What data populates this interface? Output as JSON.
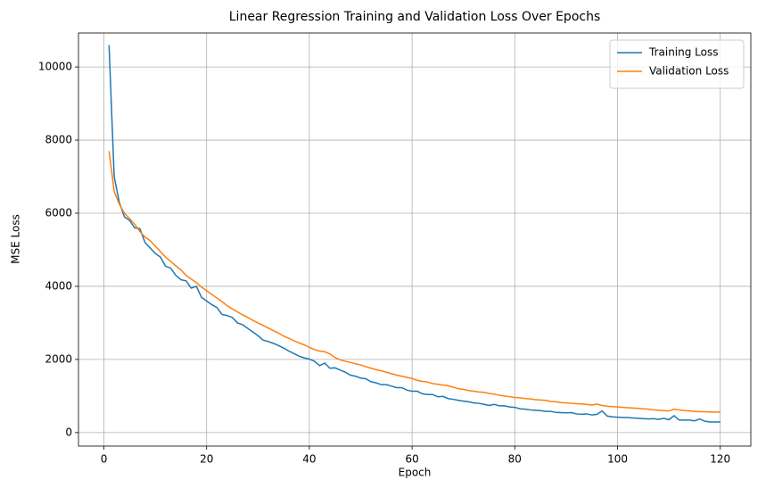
{
  "chart_data": {
    "type": "line",
    "title": "Linear Regression Training and Validation Loss Over Epochs",
    "x_label": "Epoch",
    "y_label": "MSE Loss",
    "x": [
      1,
      2,
      3,
      4,
      5,
      6,
      7,
      8,
      9,
      10,
      11,
      12,
      13,
      14,
      15,
      16,
      17,
      18,
      19,
      20,
      21,
      22,
      23,
      24,
      25,
      26,
      27,
      28,
      29,
      30,
      31,
      32,
      33,
      34,
      35,
      36,
      37,
      38,
      39,
      40,
      41,
      42,
      43,
      44,
      45,
      46,
      47,
      48,
      49,
      50,
      51,
      52,
      53,
      54,
      55,
      56,
      57,
      58,
      59,
      60,
      61,
      62,
      63,
      64,
      65,
      66,
      67,
      68,
      69,
      70,
      71,
      72,
      73,
      74,
      75,
      76,
      77,
      78,
      79,
      80,
      81,
      82,
      83,
      84,
      85,
      86,
      87,
      88,
      89,
      90,
      91,
      92,
      93,
      94,
      95,
      96,
      97,
      98,
      99,
      100,
      101,
      102,
      103,
      104,
      105,
      106,
      107,
      108,
      109,
      110,
      111,
      112,
      113,
      114,
      115,
      116,
      117,
      118,
      119,
      120
    ],
    "series": [
      {
        "name": "Training Loss",
        "color": "#1f77b4",
        "values": [
          10600,
          7000,
          6300,
          5900,
          5800,
          5600,
          5580,
          5200,
          5050,
          4900,
          4800,
          4550,
          4500,
          4300,
          4180,
          4150,
          3950,
          4000,
          3700,
          3600,
          3500,
          3420,
          3230,
          3200,
          3150,
          3000,
          2950,
          2850,
          2750,
          2650,
          2530,
          2490,
          2440,
          2380,
          2310,
          2230,
          2160,
          2090,
          2040,
          2010,
          1950,
          1830,
          1900,
          1760,
          1770,
          1710,
          1650,
          1570,
          1540,
          1490,
          1470,
          1390,
          1360,
          1310,
          1310,
          1270,
          1230,
          1230,
          1160,
          1130,
          1130,
          1060,
          1040,
          1040,
          980,
          990,
          930,
          910,
          880,
          860,
          840,
          810,
          800,
          770,
          740,
          770,
          730,
          730,
          700,
          690,
          650,
          640,
          620,
          610,
          600,
          580,
          580,
          550,
          545,
          540,
          545,
          510,
          500,
          510,
          480,
          500,
          590,
          450,
          430,
          420,
          410,
          410,
          400,
          390,
          380,
          370,
          380,
          360,
          390,
          350,
          460,
          340,
          340,
          340,
          320,
          370,
          310,
          290,
          290,
          290
        ]
      },
      {
        "name": "Validation Loss",
        "color": "#ff7f0e",
        "values": [
          7700,
          6600,
          6250,
          6000,
          5850,
          5700,
          5500,
          5350,
          5250,
          5100,
          4950,
          4800,
          4680,
          4560,
          4450,
          4300,
          4200,
          4100,
          3980,
          3880,
          3780,
          3680,
          3580,
          3470,
          3380,
          3300,
          3220,
          3150,
          3070,
          3000,
          2930,
          2860,
          2790,
          2720,
          2640,
          2580,
          2510,
          2450,
          2400,
          2330,
          2270,
          2230,
          2210,
          2150,
          2050,
          1990,
          1950,
          1920,
          1880,
          1850,
          1800,
          1760,
          1720,
          1690,
          1650,
          1610,
          1570,
          1540,
          1510,
          1480,
          1430,
          1400,
          1380,
          1340,
          1320,
          1300,
          1280,
          1240,
          1200,
          1180,
          1150,
          1130,
          1110,
          1100,
          1070,
          1050,
          1020,
          1000,
          980,
          960,
          950,
          930,
          920,
          900,
          890,
          880,
          850,
          840,
          820,
          810,
          800,
          790,
          780,
          770,
          750,
          780,
          740,
          720,
          710,
          700,
          690,
          680,
          670,
          660,
          650,
          640,
          620,
          610,
          600,
          590,
          640,
          620,
          600,
          590,
          580,
          570,
          570,
          565,
          560,
          560
        ]
      }
    ],
    "xlim": [
      -4.95,
      125.95
    ],
    "ylim": [
      -370,
      10930
    ],
    "xticks": [
      0,
      20,
      40,
      60,
      80,
      100,
      120
    ],
    "yticks": [
      0,
      2000,
      4000,
      6000,
      8000,
      10000
    ],
    "grid": true,
    "legend": "upper right"
  }
}
